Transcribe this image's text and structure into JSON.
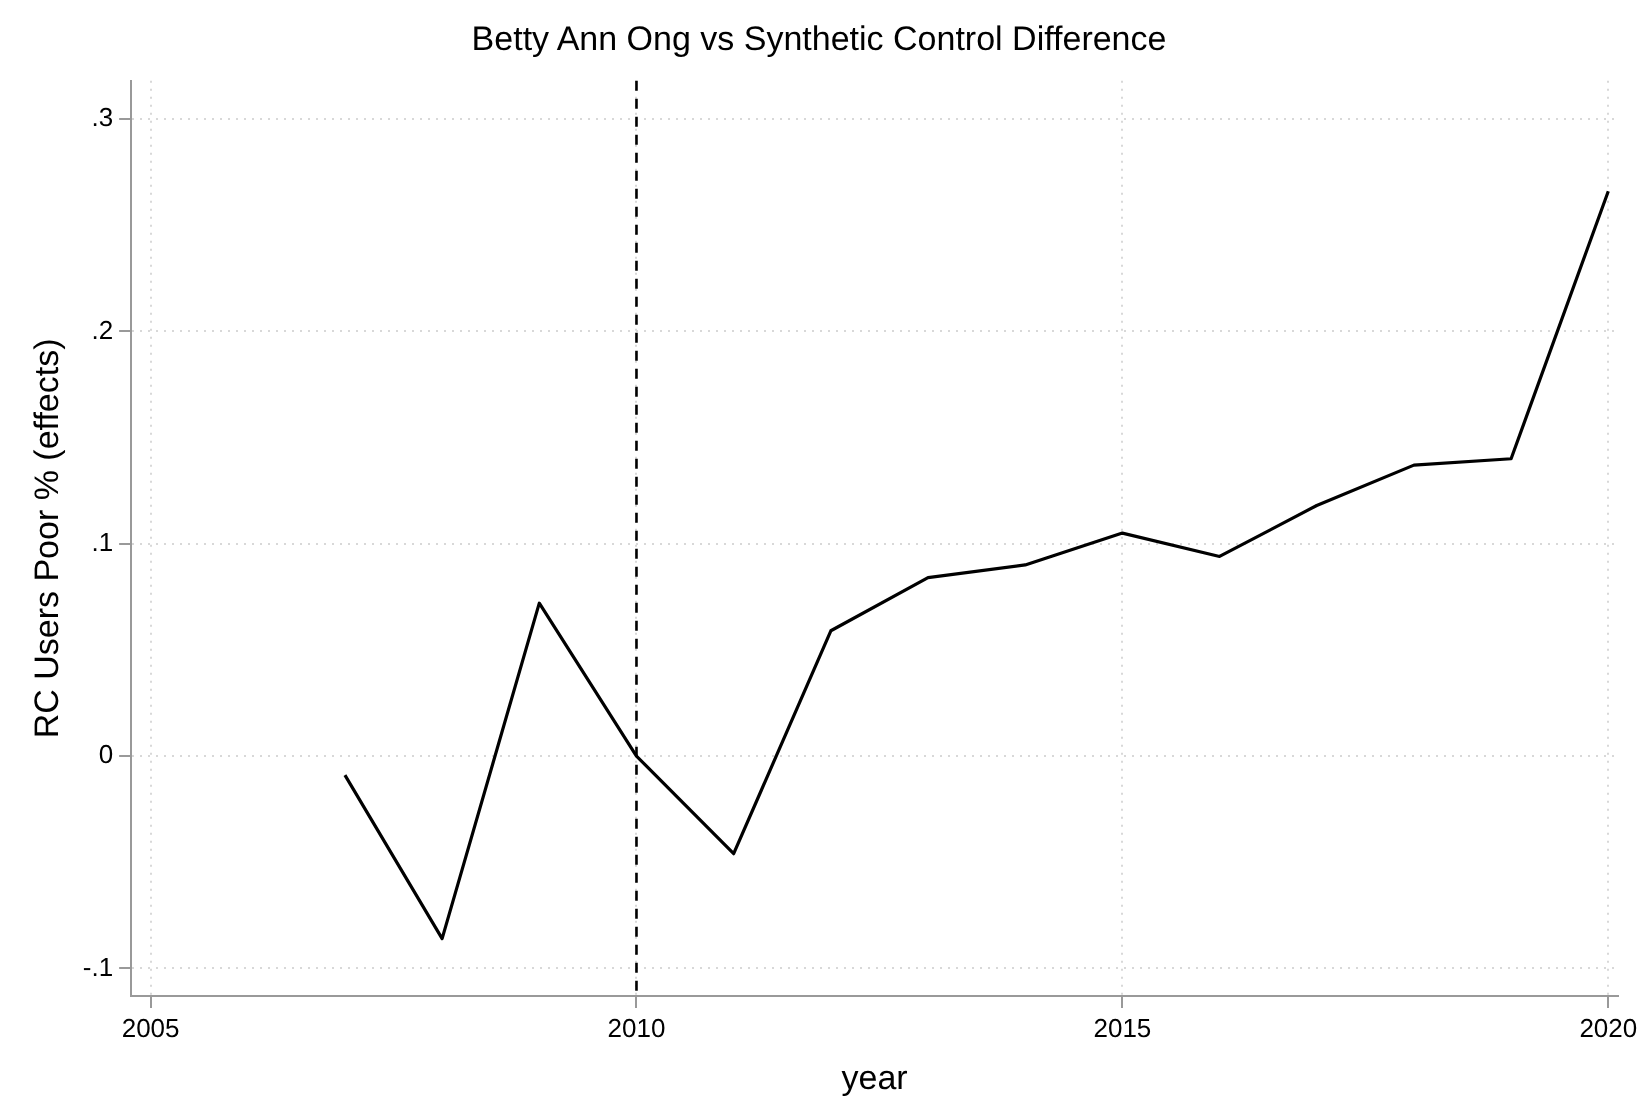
{
  "chart_data": {
    "type": "line",
    "title": "Betty Ann Ong vs Synthetic Control Difference",
    "xlabel": "year",
    "ylabel": "RC Users Poor % (effects)",
    "x": [
      2007,
      2008,
      2009,
      2010,
      2011,
      2012,
      2013,
      2014,
      2015,
      2016,
      2017,
      2018,
      2019,
      2020
    ],
    "series": [
      {
        "color": "#000000",
        "values": [
          -0.009,
          -0.086,
          0.072,
          0.0,
          -0.046,
          0.059,
          0.084,
          0.09,
          0.105,
          0.094,
          0.118,
          0.137,
          0.14,
          0.266
        ]
      }
    ],
    "xlim": [
      2004.8,
      2020.1
    ],
    "xticks": [
      2005,
      2010,
      2015,
      2020
    ],
    "ylim": [
      -0.113,
      0.318
    ],
    "yticks": [
      {
        "value": -0.1,
        "label": "-.1"
      },
      0,
      {
        "value": 0.1,
        "label": ".1"
      },
      {
        "value": 0.2,
        "label": ".2"
      },
      {
        "value": 0.3,
        "label": ".3"
      }
    ],
    "grid": true,
    "legend": false,
    "marker": "none",
    "line_style": "solid",
    "ref_lines": [
      {
        "axis": "x",
        "value": 2010,
        "color": "#000000",
        "line_style": "dashed"
      }
    ]
  }
}
